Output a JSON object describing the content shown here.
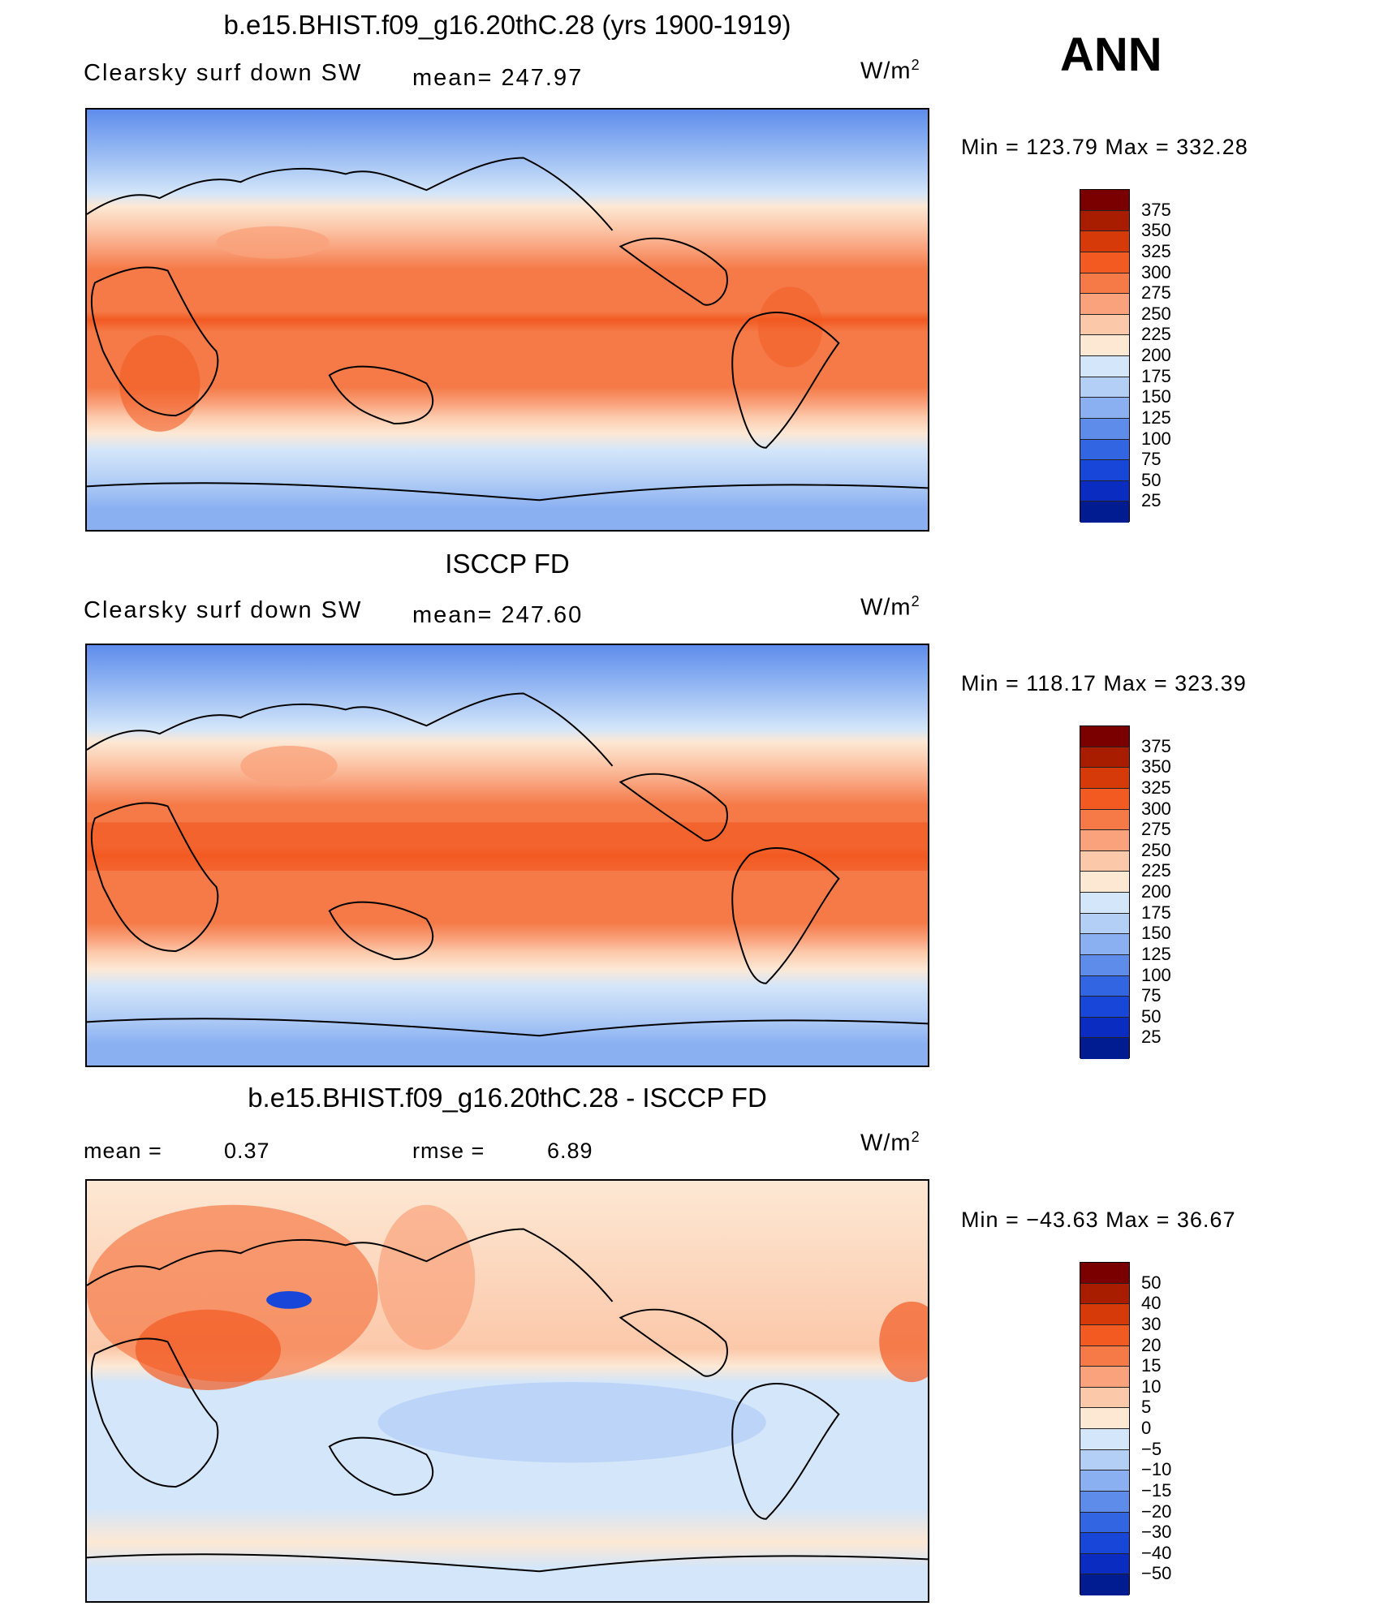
{
  "season": "ANN",
  "units_label": "W/m",
  "units_exp": "2",
  "field_label": "Clearsky surf down SW",
  "panel_model": {
    "title": "b.e15.BHIST.f09_g16.20thC.28 (yrs 1900-1919)",
    "mean": "mean= 247.97",
    "minmax": "Min  =  123.79  Max  =  332.28"
  },
  "panel_obs": {
    "title": "ISCCP FD",
    "mean": "mean= 247.60",
    "minmax": "Min  =  118.17  Max  =  323.39"
  },
  "panel_diff": {
    "title": "b.e15.BHIST.f09_g16.20thC.28 - ISCCP FD",
    "mean_label": "mean  =",
    "mean_value": "0.37",
    "rmse_label": "rmse  =",
    "rmse_value": "6.89",
    "minmax": "Min  =  −43.63  Max  =    36.67"
  },
  "colorbar_abs": {
    "levels": [
      "375",
      "350",
      "325",
      "300",
      "275",
      "250",
      "225",
      "200",
      "175",
      "150",
      "125",
      "100",
      "75",
      "50",
      "25"
    ],
    "colors": [
      "#7a0000",
      "#a81c00",
      "#d63a08",
      "#f25a22",
      "#f57a48",
      "#f9a27c",
      "#fcc8aa",
      "#fde8d4",
      "#d4e6f9",
      "#b4cff6",
      "#8ab0f2",
      "#5e8ceb",
      "#3265e2",
      "#1746d8",
      "#0a2cc0",
      "#001c90"
    ]
  },
  "colorbar_diff": {
    "levels": [
      "50",
      "40",
      "30",
      "20",
      "15",
      "10",
      "5",
      "0",
      "−5",
      "−10",
      "−15",
      "−20",
      "−30",
      "−40",
      "−50"
    ],
    "colors": [
      "#7a0000",
      "#a81c00",
      "#d63a08",
      "#f25a22",
      "#f57a48",
      "#f9a27c",
      "#fcc8aa",
      "#fde8d4",
      "#d4e6f9",
      "#b4cff6",
      "#8ab0f2",
      "#5e8ceb",
      "#3265e2",
      "#1746d8",
      "#0a2cc0",
      "#001c90"
    ]
  }
}
